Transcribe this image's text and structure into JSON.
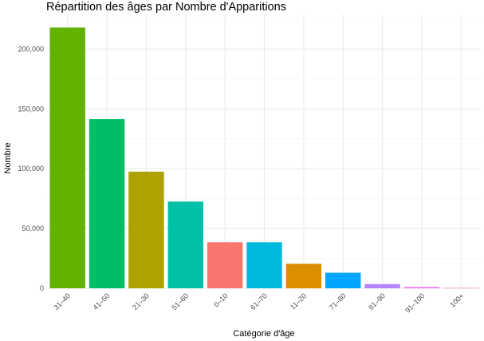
{
  "chart_data": {
    "type": "bar",
    "title": "Répartition des âges par Nombre d'Apparitions",
    "xlabel": "Catégorie d'âge",
    "ylabel": "Nombre",
    "categories": [
      "31–40",
      "41–50",
      "21–30",
      "51–60",
      "0–10",
      "61–70",
      "11–20",
      "71–80",
      "81–90",
      "91–100",
      "100+"
    ],
    "values": [
      218000,
      141500,
      97500,
      72500,
      38500,
      38500,
      20500,
      13000,
      3500,
      1000,
      300
    ],
    "colors": [
      "#64B200",
      "#00BE67",
      "#AEA200",
      "#00C1A7",
      "#F8766D",
      "#00BADE",
      "#DB8E00",
      "#00A6FF",
      "#B385FF",
      "#EF67EB",
      "#FF63B6"
    ],
    "yticks": [
      0,
      50000,
      100000,
      150000,
      200000
    ],
    "ytick_labels": [
      "0",
      "50,000",
      "100,000",
      "150,000",
      "200,000"
    ],
    "ylim": [
      0,
      229000
    ],
    "grid": true,
    "legend": "none"
  }
}
